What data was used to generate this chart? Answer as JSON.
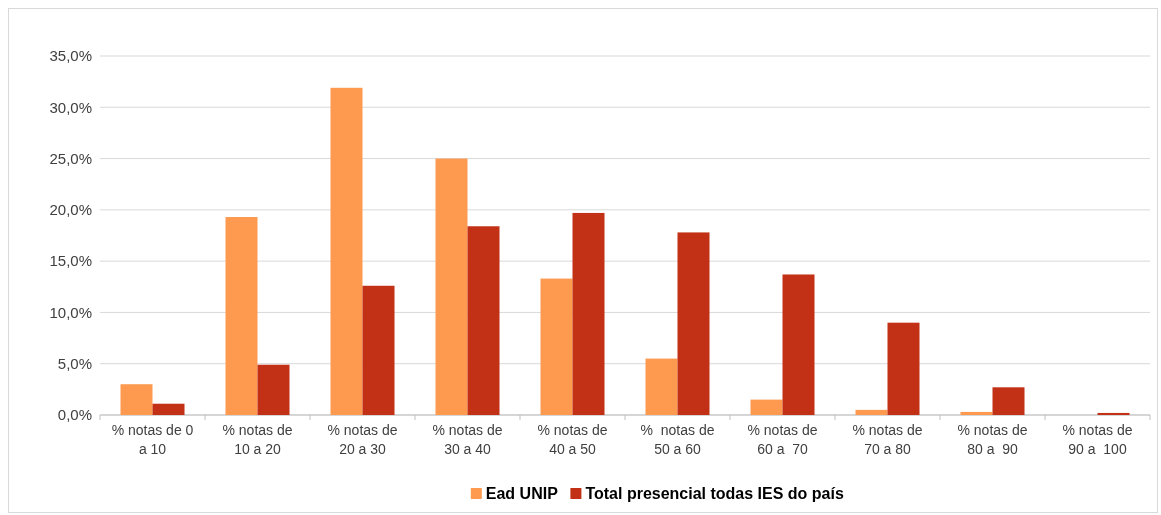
{
  "chart_data": {
    "type": "bar",
    "categories": [
      "% notas de 0 a 10",
      "% notas de 10 a 20",
      "% notas de 20 a 30",
      "% notas de 30 a 40",
      "% notas de 40 a 50",
      "%  notas de 50 a 60",
      "% notas de 60 a  70",
      "% notas de 70 a 80",
      "% notas de 80 a  90",
      "% notas de 90 a  100"
    ],
    "series": [
      {
        "name": "Ead UNIP",
        "color": "#fd9a4f",
        "values": [
          3.0,
          19.3,
          31.9,
          25.0,
          13.3,
          5.5,
          1.5,
          0.5,
          0.3,
          0
        ]
      },
      {
        "name": "Total presencial todas IES do país",
        "color": "#c23016",
        "values": [
          1.1,
          4.9,
          12.6,
          18.4,
          19.7,
          17.8,
          13.7,
          9.0,
          2.7,
          0.2
        ]
      }
    ],
    "ylim": [
      0,
      35
    ],
    "yticks": [
      {
        "value": 0,
        "label": "0,0%"
      },
      {
        "value": 5,
        "label": "5,0%"
      },
      {
        "value": 10,
        "label": "10,0%"
      },
      {
        "value": 15,
        "label": "15,0%"
      },
      {
        "value": 20,
        "label": "20,0%"
      },
      {
        "value": 25,
        "label": "25,0%"
      },
      {
        "value": 30,
        "label": "30,0%"
      },
      {
        "value": 35,
        "label": "35,0%"
      }
    ],
    "grid": "y",
    "legend": "bottom"
  }
}
